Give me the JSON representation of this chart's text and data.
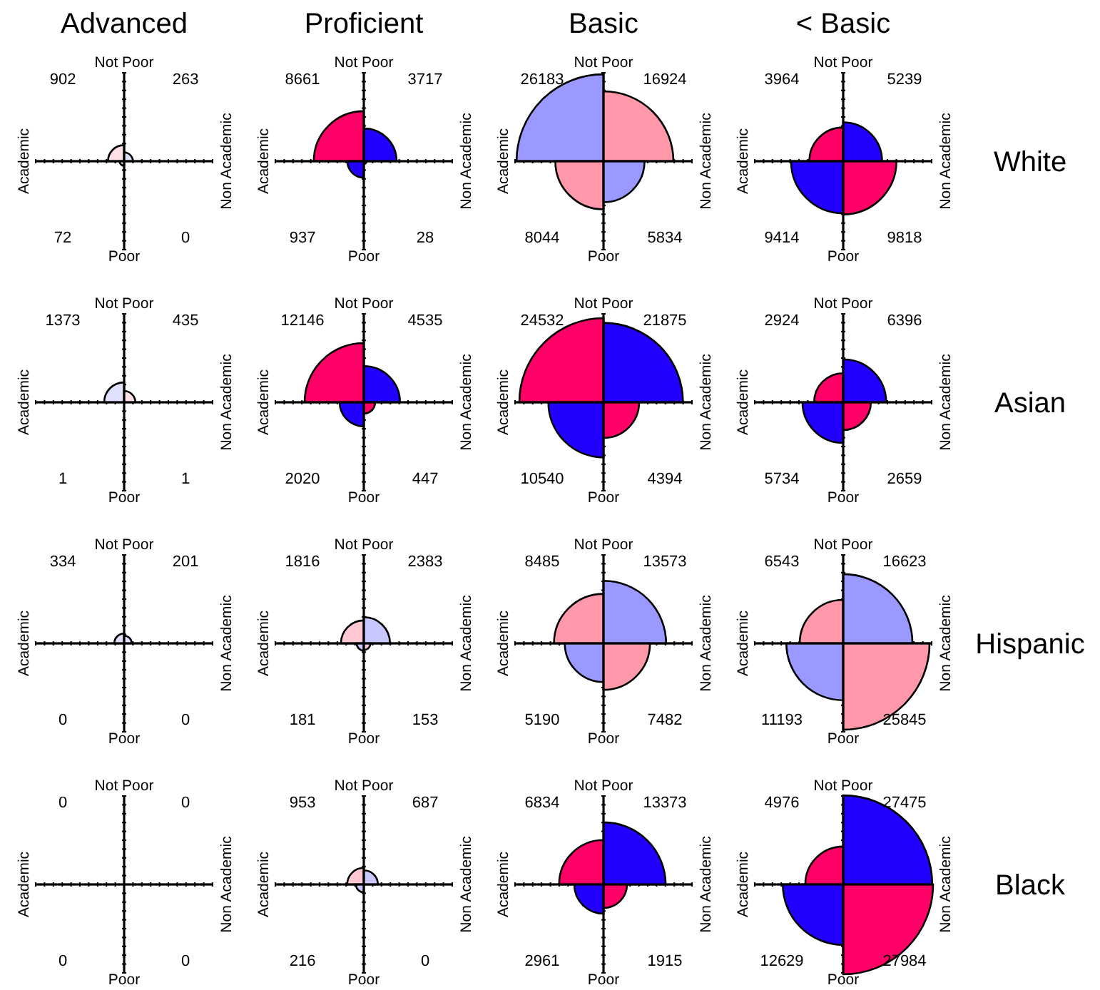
{
  "chart_data": [
    {
      "type": "other",
      "title": "Advanced",
      "categories": [
        "Academic",
        "Non Academic"
      ],
      "data_labels": true,
      "series": [
        {
          "name": "Not Poor",
          "values": [
            902,
            263
          ],
          "colors": [
            "#ffe0e6",
            "#e0e0ff"
          ]
        },
        {
          "name": "Poor",
          "values": [
            72,
            0
          ],
          "colors": [
            "#e0e0ff",
            "#ffe0e6"
          ]
        }
      ]
    },
    {
      "type": "other",
      "title": "Proficient",
      "categories": [
        "Academic",
        "Non Academic"
      ],
      "data_labels": true,
      "series": [
        {
          "name": "Not Poor",
          "values": [
            8661,
            3717
          ],
          "colors": [
            "#ff0066",
            "#2200ff"
          ]
        },
        {
          "name": "Poor",
          "values": [
            937,
            28
          ],
          "colors": [
            "#2200ff",
            "#ff0066"
          ]
        }
      ]
    },
    {
      "type": "other",
      "title": "Basic",
      "categories": [
        "Academic",
        "Non Academic"
      ],
      "data_labels": true,
      "series": [
        {
          "name": "Not Poor",
          "values": [
            26183,
            16924
          ],
          "colors": [
            "#9999ff",
            "#ff99aa"
          ]
        },
        {
          "name": "Poor",
          "values": [
            8044,
            5834
          ],
          "colors": [
            "#ff99aa",
            "#9999ff"
          ]
        }
      ]
    },
    {
      "type": "other",
      "title": "< Basic",
      "y2label": "White",
      "categories": [
        "Academic",
        "Non Academic"
      ],
      "data_labels": true,
      "series": [
        {
          "name": "Not Poor",
          "values": [
            3964,
            5239
          ],
          "colors": [
            "#ff0066",
            "#2200ff"
          ]
        },
        {
          "name": "Poor",
          "values": [
            9414,
            9818
          ],
          "colors": [
            "#2200ff",
            "#ff0066"
          ]
        }
      ]
    },
    {
      "type": "other",
      "categories": [
        "Academic",
        "Non Academic"
      ],
      "data_labels": true,
      "series": [
        {
          "name": "Not Poor",
          "values": [
            1373,
            435
          ],
          "colors": [
            "#e0e0ff",
            "#ffe0e6"
          ]
        },
        {
          "name": "Poor",
          "values": [
            1,
            1
          ],
          "colors": [
            "#ffe0e6",
            "#e0e0ff"
          ]
        }
      ]
    },
    {
      "type": "other",
      "categories": [
        "Academic",
        "Non Academic"
      ],
      "data_labels": true,
      "series": [
        {
          "name": "Not Poor",
          "values": [
            12146,
            4535
          ],
          "colors": [
            "#ff0066",
            "#2200ff"
          ]
        },
        {
          "name": "Poor",
          "values": [
            2020,
            447
          ],
          "colors": [
            "#2200ff",
            "#ff0066"
          ]
        }
      ]
    },
    {
      "type": "other",
      "categories": [
        "Academic",
        "Non Academic"
      ],
      "data_labels": true,
      "series": [
        {
          "name": "Not Poor",
          "values": [
            24532,
            21875
          ],
          "colors": [
            "#ff0066",
            "#2200ff"
          ]
        },
        {
          "name": "Poor",
          "values": [
            10540,
            4394
          ],
          "colors": [
            "#2200ff",
            "#ff0066"
          ]
        }
      ]
    },
    {
      "type": "other",
      "y2label": "Asian",
      "categories": [
        "Academic",
        "Non Academic"
      ],
      "data_labels": true,
      "series": [
        {
          "name": "Not Poor",
          "values": [
            2924,
            6396
          ],
          "colors": [
            "#ff0066",
            "#2200ff"
          ]
        },
        {
          "name": "Poor",
          "values": [
            5734,
            2659
          ],
          "colors": [
            "#2200ff",
            "#ff0066"
          ]
        }
      ]
    },
    {
      "type": "other",
      "categories": [
        "Academic",
        "Non Academic"
      ],
      "data_labels": true,
      "series": [
        {
          "name": "Not Poor",
          "values": [
            334,
            201
          ],
          "colors": [
            "#e0e0ff",
            "#e0e0ff"
          ]
        },
        {
          "name": "Poor",
          "values": [
            0,
            0
          ],
          "colors": [
            "#ffe0e6",
            "#e0e0ff"
          ]
        }
      ]
    },
    {
      "type": "other",
      "categories": [
        "Academic",
        "Non Academic"
      ],
      "data_labels": true,
      "series": [
        {
          "name": "Not Poor",
          "values": [
            1816,
            2383
          ],
          "colors": [
            "#ffc8d2",
            "#c8c8ff"
          ]
        },
        {
          "name": "Poor",
          "values": [
            181,
            153
          ],
          "colors": [
            "#c8c8ff",
            "#ffc8d2"
          ]
        }
      ]
    },
    {
      "type": "other",
      "categories": [
        "Academic",
        "Non Academic"
      ],
      "data_labels": true,
      "series": [
        {
          "name": "Not Poor",
          "values": [
            8485,
            13573
          ],
          "colors": [
            "#ff99aa",
            "#9999ff"
          ]
        },
        {
          "name": "Poor",
          "values": [
            5190,
            7482
          ],
          "colors": [
            "#9999ff",
            "#ff99aa"
          ]
        }
      ]
    },
    {
      "type": "other",
      "y2label": "Hispanic",
      "categories": [
        "Academic",
        "Non Academic"
      ],
      "data_labels": true,
      "series": [
        {
          "name": "Not Poor",
          "values": [
            6543,
            16623
          ],
          "colors": [
            "#ff99aa",
            "#9999ff"
          ]
        },
        {
          "name": "Poor",
          "values": [
            11193,
            25845
          ],
          "colors": [
            "#9999ff",
            "#ff99aa"
          ]
        }
      ]
    },
    {
      "type": "other",
      "categories": [
        "Academic",
        "Non Academic"
      ],
      "data_labels": true,
      "series": [
        {
          "name": "Not Poor",
          "values": [
            0,
            0
          ],
          "colors": [
            "#ffe0e6",
            "#e0e0ff"
          ]
        },
        {
          "name": "Poor",
          "values": [
            0,
            0
          ],
          "colors": [
            "#e0e0ff",
            "#ffe0e6"
          ]
        }
      ]
    },
    {
      "type": "other",
      "categories": [
        "Academic",
        "Non Academic"
      ],
      "data_labels": true,
      "series": [
        {
          "name": "Not Poor",
          "values": [
            953,
            687
          ],
          "colors": [
            "#ffc8d2",
            "#c8c8ff"
          ]
        },
        {
          "name": "Poor",
          "values": [
            216,
            0
          ],
          "colors": [
            "#c8c8ff",
            "#ffc8d2"
          ]
        }
      ]
    },
    {
      "type": "other",
      "categories": [
        "Academic",
        "Non Academic"
      ],
      "data_labels": true,
      "series": [
        {
          "name": "Not Poor",
          "values": [
            6834,
            13373
          ],
          "colors": [
            "#ff0066",
            "#2200ff"
          ]
        },
        {
          "name": "Poor",
          "values": [
            2961,
            1915
          ],
          "colors": [
            "#2200ff",
            "#ff0066"
          ]
        }
      ]
    },
    {
      "type": "other",
      "y2label": "Black",
      "categories": [
        "Academic",
        "Non Academic"
      ],
      "data_labels": true,
      "series": [
        {
          "name": "Not Poor",
          "values": [
            4976,
            27475
          ],
          "colors": [
            "#ff0066",
            "#2200ff"
          ]
        },
        {
          "name": "Poor",
          "values": [
            12629,
            27984
          ],
          "colors": [
            "#2200ff",
            "#ff0066"
          ]
        }
      ]
    }
  ]
}
